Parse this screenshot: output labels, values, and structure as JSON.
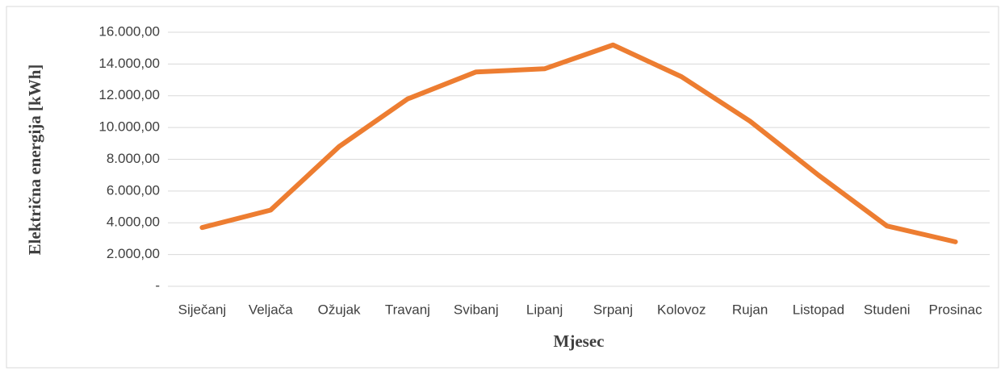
{
  "chart_data": {
    "type": "line",
    "x_label": "Mjesec",
    "y_label": "Električna energija [kWh]",
    "categories": [
      "Siječanj",
      "Veljača",
      "Ožujak",
      "Travanj",
      "Svibanj",
      "Lipanj",
      "Srpanj",
      "Kolovoz",
      "Rujan",
      "Listopad",
      "Studeni",
      "Prosinac"
    ],
    "series": [
      {
        "name": "Električna energija",
        "color": "#ed7d31",
        "values": [
          3700,
          4800,
          8800,
          11800,
          13500,
          13700,
          15200,
          13200,
          10400,
          7000,
          3800,
          2800
        ]
      }
    ],
    "ylim": [
      0,
      16000
    ],
    "yticks": [
      {
        "value": 0,
        "label": "-"
      },
      {
        "value": 2000,
        "label": "2.000,00"
      },
      {
        "value": 4000,
        "label": "4.000,00"
      },
      {
        "value": 6000,
        "label": "6.000,00"
      },
      {
        "value": 8000,
        "label": "8.000,00"
      },
      {
        "value": 10000,
        "label": "10.000,00"
      },
      {
        "value": 12000,
        "label": "12.000,00"
      },
      {
        "value": 14000,
        "label": "14.000,00"
      },
      {
        "value": 16000,
        "label": "16.000,00"
      }
    ],
    "grid": true
  }
}
